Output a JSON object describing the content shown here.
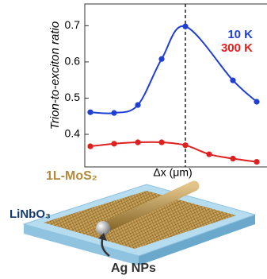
{
  "chart_data": {
    "type": "line",
    "y_label": "Trion-to-exciton ratio",
    "x_label": "Δx (μm)",
    "categories": [
      null,
      null,
      null,
      null,
      null,
      null,
      null,
      null
    ],
    "series": [
      {
        "name": "10 K",
        "color": "#1f3fd6",
        "values": [
          0.461,
          0.459,
          0.481,
          0.608,
          0.698,
          null,
          0.549,
          0.49
        ]
      },
      {
        "name": "300 K",
        "color": "#e0201e",
        "values": [
          0.367,
          0.374,
          0.378,
          0.378,
          0.37,
          0.345,
          0.333,
          0.324
        ]
      }
    ],
    "ylim": [
      0.31,
      0.76
    ],
    "yticks": [
      0.4,
      0.5,
      0.6,
      0.7
    ],
    "grid": false,
    "legend": "upper right"
  },
  "diagram": {
    "layer_label": "1L-MoS₂",
    "substrate_label": "LiNbO₃",
    "particle_label": "Ag NPs"
  }
}
